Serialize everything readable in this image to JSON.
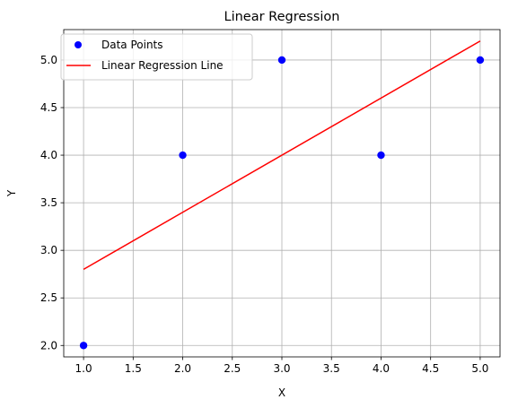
{
  "chart_data": {
    "type": "scatter",
    "title": "Linear Regression",
    "xlabel": "X",
    "ylabel": "Y",
    "xlim": [
      0.8,
      5.2
    ],
    "ylim": [
      1.88,
      5.32
    ],
    "x_ticks": [
      1.0,
      1.5,
      2.0,
      2.5,
      3.0,
      3.5,
      4.0,
      4.5,
      5.0
    ],
    "x_tick_labels": [
      "1.0",
      "1.5",
      "2.0",
      "2.5",
      "3.0",
      "3.5",
      "4.0",
      "4.5",
      "5.0"
    ],
    "y_ticks": [
      2.0,
      2.5,
      3.0,
      3.5,
      4.0,
      4.5,
      5.0
    ],
    "y_tick_labels": [
      "2.0",
      "2.5",
      "3.0",
      "3.5",
      "4.0",
      "4.5",
      "5.0"
    ],
    "grid": true,
    "legend_position": "top-left",
    "series": [
      {
        "name": "Data Points",
        "kind": "scatter",
        "color": "#0000ff",
        "points": [
          {
            "x": 1,
            "y": 2
          },
          {
            "x": 2,
            "y": 4
          },
          {
            "x": 3,
            "y": 5
          },
          {
            "x": 4,
            "y": 4
          },
          {
            "x": 5,
            "y": 5
          }
        ]
      },
      {
        "name": "Linear Regression Line",
        "kind": "line",
        "color": "#ff0000",
        "points": [
          {
            "x": 1,
            "y": 2.8
          },
          {
            "x": 5,
            "y": 5.2
          }
        ]
      }
    ]
  }
}
